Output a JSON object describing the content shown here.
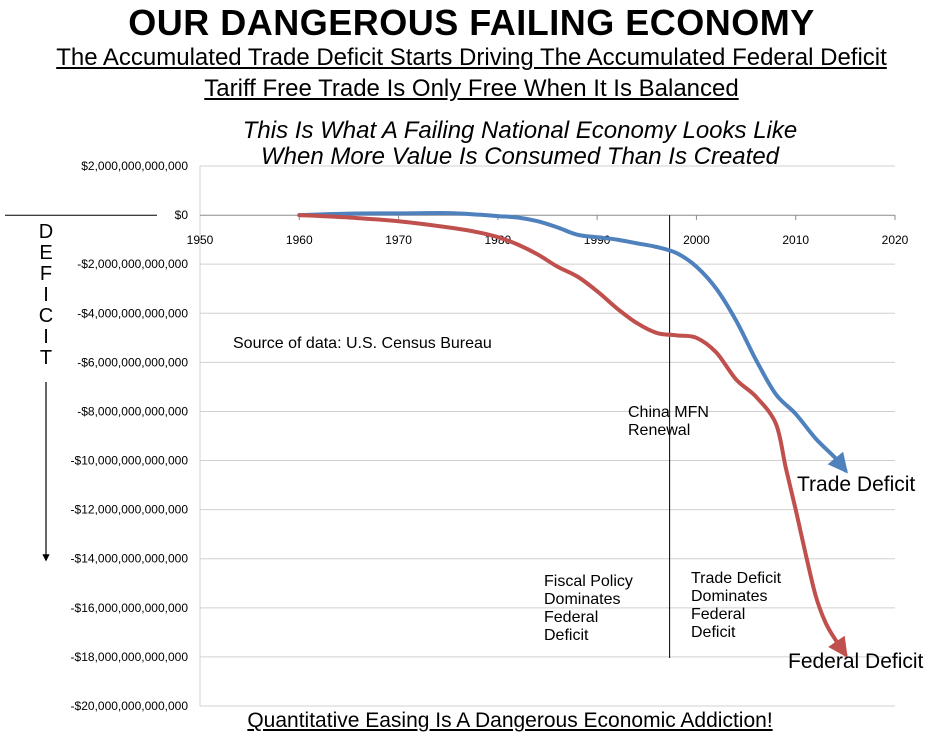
{
  "headline": "OUR DANGEROUS FAILING ECONOMY",
  "subtitle_1": "The Accumulated Trade Deficit Starts Driving The Accumulated Federal Deficit",
  "subtitle_2": "Tariff Free Trade Is Only Free When It Is Balanced",
  "tagline_1": "This Is What A Failing National Economy Looks Like",
  "tagline_2": "When More Value Is Consumed Than Is Created",
  "footer": "Quantitative Easing Is A Dangerous Economic Addiction!",
  "chart_data": {
    "type": "line",
    "ylabel": "DEFICIT",
    "xlim": [
      1950,
      2020
    ],
    "ylim": [
      -20000000000000,
      2000000000000
    ],
    "x_ticks": [
      1950,
      1960,
      1970,
      1980,
      1990,
      2000,
      2010,
      2020
    ],
    "y_tick_labels": [
      {
        "value": 2000000000000,
        "label": "$2,000,000,000,000"
      },
      {
        "value": 0,
        "label": "$0"
      },
      {
        "value": -2000000000000,
        "label": "-$2,000,000,000,000"
      },
      {
        "value": -4000000000000,
        "label": "-$4,000,000,000,000"
      },
      {
        "value": -6000000000000,
        "label": "-$6,000,000,000,000"
      },
      {
        "value": -8000000000000,
        "label": "-$8,000,000,000,000"
      },
      {
        "value": -10000000000000,
        "label": "-$10,000,000,000,000"
      },
      {
        "value": -12000000000000,
        "label": "-$12,000,000,000,000"
      },
      {
        "value": -14000000000000,
        "label": "-$14,000,000,000,000"
      },
      {
        "value": -16000000000000,
        "label": "-$16,000,000,000,000"
      },
      {
        "value": -18000000000000,
        "label": "-$18,000,000,000,000"
      },
      {
        "value": -20000000000000,
        "label": "-$20,000,000,000,000"
      }
    ],
    "grid": "horizontal",
    "series": [
      {
        "name": "Trade Deficit",
        "color": "#4f81bd",
        "x": [
          1960,
          1965,
          1970,
          1975,
          1978,
          1980,
          1982,
          1984,
          1986,
          1988,
          1990,
          1992,
          1994,
          1996,
          1998,
          2000,
          2002,
          2004,
          2006,
          2008,
          2010,
          2012,
          2014,
          2015
        ],
        "y": [
          0,
          60000000000,
          70000000000,
          80000000000,
          20000000000,
          -40000000000,
          -100000000000,
          -250000000000,
          -500000000000,
          -800000000000,
          -900000000000,
          -1000000000000,
          -1150000000000,
          -1300000000000,
          -1550000000000,
          -2100000000000,
          -3000000000000,
          -4300000000000,
          -5900000000000,
          -7300000000000,
          -8100000000000,
          -9100000000000,
          -9900000000000,
          -10400000000000
        ]
      },
      {
        "name": "Federal Deficit",
        "color": "#c0504d",
        "x": [
          1960,
          1965,
          1970,
          1975,
          1978,
          1980,
          1982,
          1984,
          1986,
          1988,
          1990,
          1992,
          1994,
          1996,
          1998,
          2000,
          2002,
          2004,
          2006,
          2008,
          2009,
          2010,
          2011,
          2012,
          2013,
          2014,
          2015
        ],
        "y": [
          0,
          -100000000000,
          -250000000000,
          -500000000000,
          -700000000000,
          -900000000000,
          -1200000000000,
          -1600000000000,
          -2100000000000,
          -2500000000000,
          -3100000000000,
          -3800000000000,
          -4400000000000,
          -4800000000000,
          -4900000000000,
          -5000000000000,
          -5600000000000,
          -6700000000000,
          -7400000000000,
          -8500000000000,
          -10300000000000,
          -12000000000000,
          -13800000000000,
          -15500000000000,
          -16600000000000,
          -17300000000000,
          -17900000000000
        ]
      }
    ],
    "annotations": [
      {
        "text": "Source of data:  U.S. Census Bureau"
      },
      {
        "lines": [
          "China MFN",
          "Renewal"
        ],
        "marker_year": 1997.3
      },
      {
        "lines": [
          "Fiscal Policy",
          "Dominates",
          "Federal",
          "Deficit"
        ]
      },
      {
        "lines": [
          "Trade Deficit",
          "Dominates",
          "Federal",
          "Deficit"
        ]
      }
    ]
  }
}
